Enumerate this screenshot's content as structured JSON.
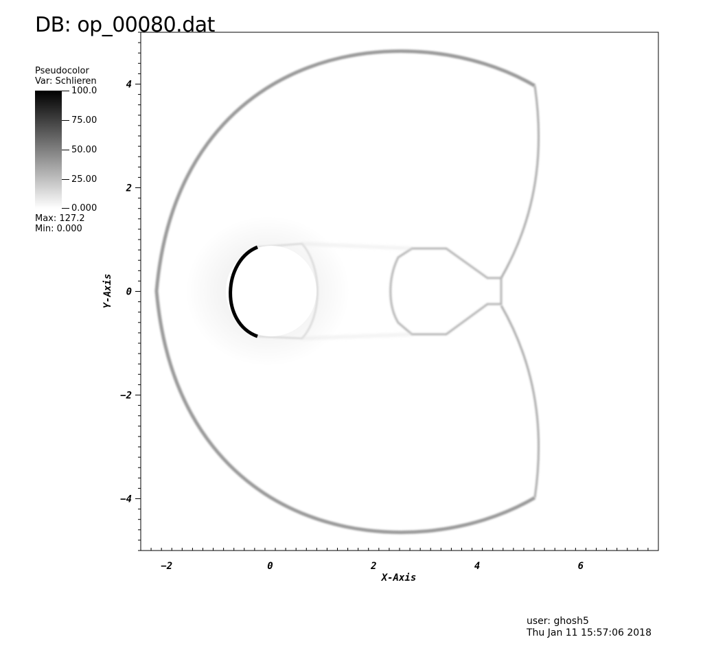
{
  "header": {
    "db_title": "DB: op_00080.dat"
  },
  "legend": {
    "plot_type": "Pseudocolor",
    "variable": "Var: Schlieren",
    "ticks": [
      "100.0",
      "75.00",
      "50.00",
      "25.00",
      "0.000"
    ],
    "max_text": "Max:  127.2",
    "min_text": "Min:  0.000",
    "colormap": [
      "#000000",
      "#ffffff"
    ]
  },
  "chart_data": {
    "type": "heatmap",
    "variable": "Schlieren",
    "xlabel": "X-Axis",
    "ylabel": "Y-Axis",
    "xlim": [
      -2.5,
      7.5
    ],
    "ylim": [
      -5,
      5
    ],
    "xticks": [
      -2,
      0,
      2,
      4,
      6
    ],
    "yticks": [
      -4,
      -2,
      0,
      2,
      4
    ],
    "color_range": [
      0,
      100
    ],
    "data_max": 127.2,
    "data_min": 0.0,
    "features": {
      "cylinder": {
        "center": [
          0.05,
          0.0
        ],
        "radius": 0.87
      },
      "bow_shock": {
        "vertex": [
          -2.2,
          0.0
        ],
        "top_right": [
          5.1,
          4.0
        ],
        "bottom_right": [
          5.1,
          -4.0
        ]
      },
      "incident_shock_x": 5.1,
      "wake_region": {
        "x": [
          2.3,
          4.5
        ],
        "y": [
          -0.8,
          0.8
        ]
      }
    }
  },
  "footer": {
    "user": "user: ghosh5",
    "timestamp": "Thu Jan 11 15:57:06 2018"
  }
}
